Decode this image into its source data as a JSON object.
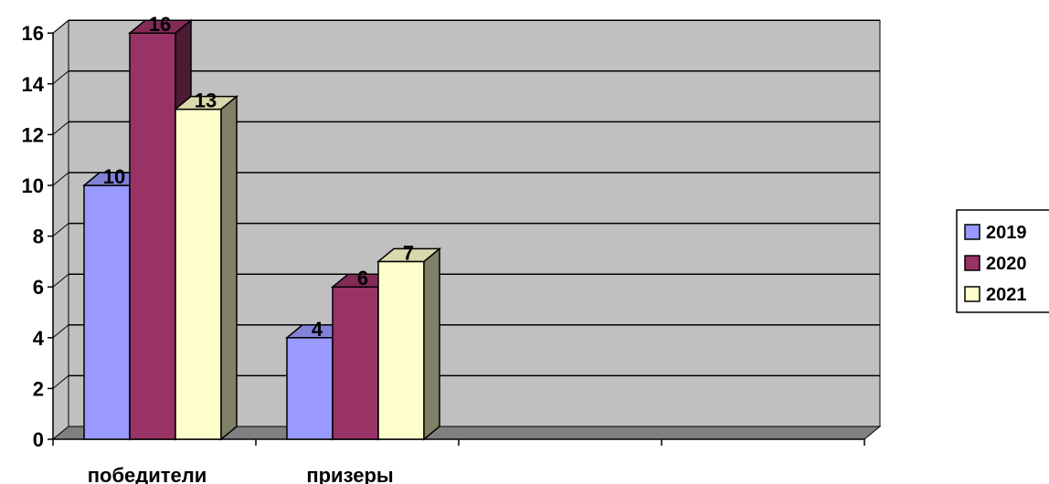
{
  "chart_data": {
    "type": "bar",
    "categories": [
      "победители",
      "призеры",
      "",
      ""
    ],
    "series": [
      {
        "name": "2019",
        "values": [
          10,
          4,
          null,
          null
        ]
      },
      {
        "name": "2020",
        "values": [
          16,
          6,
          null,
          null
        ]
      },
      {
        "name": "2021",
        "values": [
          13,
          7,
          null,
          null
        ]
      }
    ],
    "ylim": [
      0,
      16
    ],
    "yticks": [
      0,
      2,
      4,
      6,
      8,
      10,
      12,
      14,
      16
    ],
    "grid": true,
    "legend": "right",
    "style": "3d-clustered-column"
  },
  "colors": {
    "series": [
      "#9999FF",
      "#993366",
      "#FFFFCC"
    ],
    "wall": "#C0C0C0",
    "floor": "#808080",
    "edge": "#000000"
  }
}
